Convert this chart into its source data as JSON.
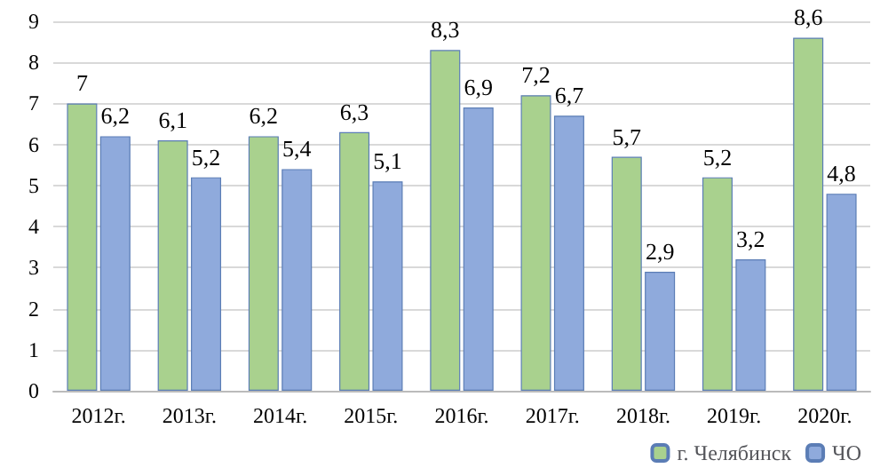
{
  "chart_data": {
    "type": "bar",
    "categories": [
      "2012г.",
      "2013г.",
      "2014г.",
      "2015г.",
      "2016г.",
      "2017г.",
      "2018г.",
      "2019г.",
      "2020г."
    ],
    "series": [
      {
        "name": "г. Челябинск",
        "color": "#a9d18e",
        "values": [
          7,
          6.1,
          6.2,
          6.3,
          8.3,
          7.2,
          5.7,
          5.2,
          8.6
        ],
        "value_labels": [
          "7",
          "6,1",
          "6,2",
          "6,3",
          "8,3",
          "7,2",
          "5,7",
          "5,2",
          "8,6"
        ]
      },
      {
        "name": "ЧО",
        "color": "#8faadc",
        "values": [
          6.2,
          5.2,
          5.4,
          5.1,
          6.9,
          6.7,
          2.9,
          3.2,
          4.8
        ],
        "value_labels": [
          "6,2",
          "5,2",
          "5,4",
          "5,1",
          "6,9",
          "6,7",
          "2,9",
          "3,2",
          "4,8"
        ]
      }
    ],
    "ylim": [
      0,
      9
    ],
    "yticks": [
      0,
      1,
      2,
      3,
      4,
      5,
      6,
      7,
      8,
      9
    ],
    "grid": "y",
    "legend": "bottom right"
  }
}
